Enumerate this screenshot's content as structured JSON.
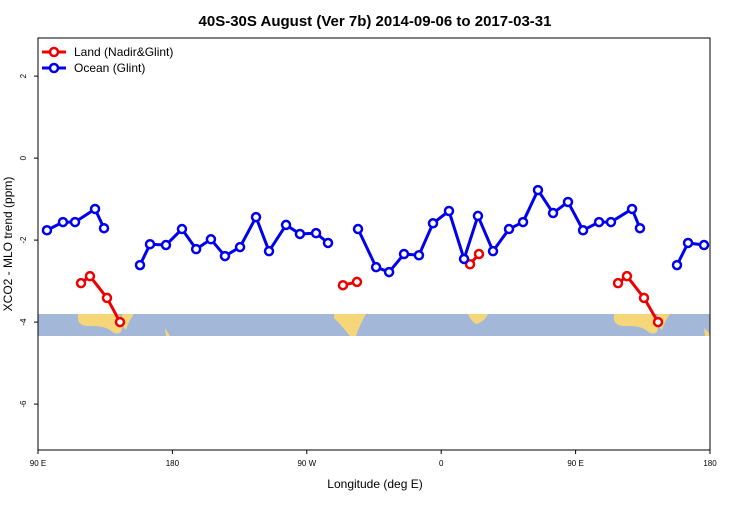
{
  "chart_data": {
    "type": "line",
    "title": "40S-30S August (Ver 7b)   2014-09-06 to 2017-03-31",
    "x_label": "Longitude (deg E)",
    "y_label": "XCO2 - MLO trend (ppm)",
    "xlim": [
      90,
      540
    ],
    "xticks": [
      {
        "value": 90,
        "label": "90 E"
      },
      {
        "value": 180,
        "label": "180"
      },
      {
        "value": 270,
        "label": "90 W"
      },
      {
        "value": 360,
        "label": "0"
      },
      {
        "value": 450,
        "label": "90 E"
      },
      {
        "value": 540,
        "label": "180"
      }
    ],
    "ylim": [
      -7.12,
      2.93
    ],
    "yticks": [
      -6,
      -4,
      -2,
      0,
      2
    ],
    "legend": "top-left",
    "series": [
      {
        "name": "Land (Nadir&Glint)",
        "color": "#ee0000",
        "x": [
          118.8,
          124.8,
          136.2,
          144.9,
          null,
          294.2,
          303.6,
          null,
          379.3,
          385.3,
          null,
          478.4,
          484.4,
          495.8,
          505.2
        ],
        "values": [
          -3.05,
          -2.88,
          -3.41,
          -4.0,
          null,
          -3.1,
          -3.02,
          null,
          -2.59,
          -2.34,
          null,
          -3.05,
          -2.88,
          -3.41,
          -4.0
        ]
      },
      {
        "name": "Ocean (Glint)",
        "color": "#0000ee",
        "x": [
          96.0,
          106.7,
          114.8,
          128.2,
          134.2,
          null,
          158.3,
          165.0,
          175.7,
          186.4,
          195.9,
          205.8,
          215.2,
          225.3,
          236.0,
          244.7,
          256.1,
          265.4,
          276.2,
          284.2,
          null,
          304.3,
          316.4,
          325.1,
          335.1,
          345.1,
          354.5,
          365.2,
          375.3,
          384.6,
          394.7,
          405.4,
          414.8,
          424.8,
          434.9,
          444.9,
          455.0,
          465.7,
          473.7,
          487.8,
          493.1,
          null,
          517.9,
          525.3,
          536.0
        ],
        "values": [
          -1.76,
          -1.56,
          -1.56,
          -1.24,
          -1.71,
          null,
          -2.61,
          -2.1,
          -2.12,
          -1.73,
          -2.22,
          -1.98,
          -2.39,
          -2.17,
          -1.44,
          -2.27,
          -1.63,
          -1.85,
          -1.83,
          -2.07,
          null,
          -1.73,
          -2.66,
          -2.78,
          -2.34,
          -2.37,
          -1.59,
          -1.29,
          -2.46,
          -1.41,
          -2.27,
          -1.73,
          -1.56,
          -0.78,
          -1.34,
          -1.07,
          -1.76,
          -1.56,
          -1.56,
          -1.24,
          -1.71,
          null,
          -2.61,
          -2.07,
          -2.12
        ]
      }
    ]
  }
}
